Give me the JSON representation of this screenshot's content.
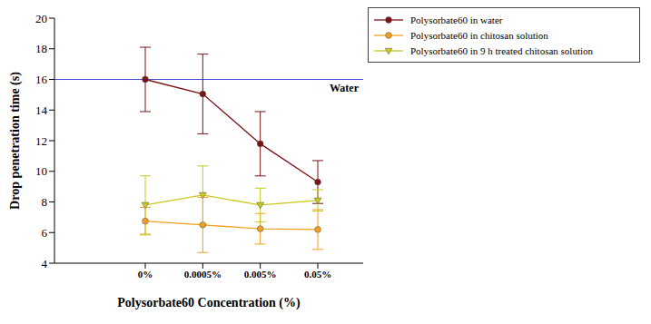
{
  "chart_data": {
    "type": "line",
    "x_label": "Polysorbate60 Concentration (%)",
    "y_label": "Drop penetration time (s)",
    "categories": [
      "0%",
      "0.0005%",
      "0.005%",
      "0.05%"
    ],
    "series": [
      {
        "name": "Polysorbate60 in water",
        "color": "#7a1414",
        "marker": "circle",
        "line_style": "solid",
        "values": [
          16.0,
          15.05,
          11.8,
          9.3
        ],
        "errors": [
          2.1,
          2.6,
          2.1,
          1.4
        ]
      },
      {
        "name": "Polysorbate60 in chitosan solution",
        "color": "#f0a020",
        "marker": "circle",
        "line_style": "solid",
        "values": [
          6.75,
          6.5,
          6.25,
          6.2
        ],
        "errors": [
          0.9,
          1.8,
          1.0,
          1.3
        ]
      },
      {
        "name": "Polysorbate60 in 9 h treated chitosan solution",
        "color": "#c8c81e",
        "marker": "triangle_down",
        "line_style": "solid",
        "values": [
          7.8,
          8.45,
          7.8,
          8.1
        ],
        "errors": [
          1.9,
          1.9,
          1.1,
          0.7
        ]
      }
    ],
    "ylim": [
      4,
      20
    ],
    "yticks": [
      4,
      6,
      8,
      10,
      12,
      14,
      16,
      18,
      20
    ],
    "annotations": [
      {
        "text": "Water",
        "y": 16,
        "color": "#4a4ad0"
      }
    ],
    "legend": "right",
    "grid": false
  }
}
